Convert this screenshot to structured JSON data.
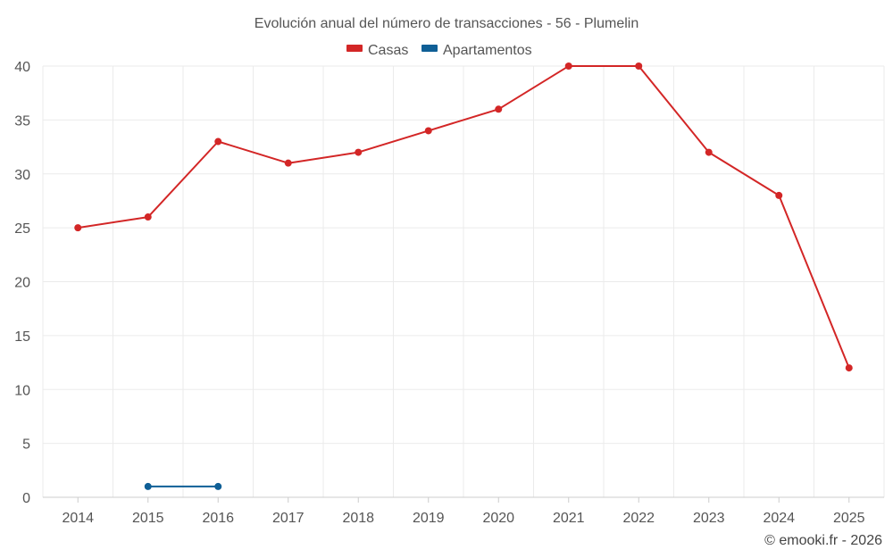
{
  "chart_data": {
    "type": "line",
    "title": "Evolución anual del número de transacciones - 56 - Plumelin",
    "categories": [
      "2014",
      "2015",
      "2016",
      "2017",
      "2018",
      "2019",
      "2020",
      "2021",
      "2022",
      "2023",
      "2024",
      "2025"
    ],
    "ylim": [
      0,
      40
    ],
    "yticks": [
      0,
      5,
      10,
      15,
      20,
      25,
      30,
      35,
      40
    ],
    "xlabel": "",
    "ylabel": "",
    "grid": true,
    "legend_position": "top-center",
    "series": [
      {
        "name": "Casas",
        "color": "#d32626",
        "values": [
          25,
          26,
          33,
          31,
          32,
          34,
          36,
          40,
          40,
          32,
          28,
          12
        ]
      },
      {
        "name": "Apartamentos",
        "color": "#0f5f96",
        "values": [
          null,
          1,
          1,
          null,
          null,
          null,
          null,
          null,
          null,
          null,
          null,
          null
        ]
      }
    ]
  },
  "credit": "© emooki.fr - 2026"
}
